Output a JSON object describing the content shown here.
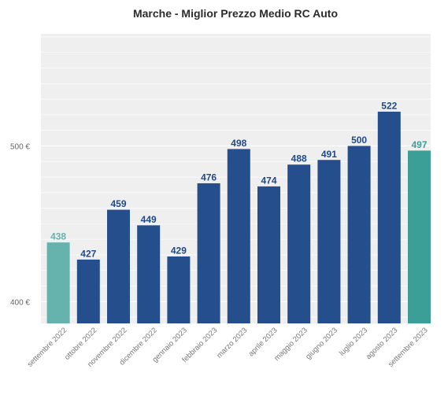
{
  "chart_data": {
    "type": "bar",
    "title": "Marche - Miglior Prezzo Medio RC Auto",
    "xlabel": "",
    "ylabel": "",
    "categories": [
      "settembre 2022",
      "ottobre 2022",
      "novembre 2022",
      "dicembre 2022",
      "gennaio 2023",
      "febbraio 2023",
      "marzo 2023",
      "aprile 2023",
      "maggio 2023",
      "giugno 2023",
      "luglio 2023",
      "agosto 2023",
      "settembre 2023"
    ],
    "values": [
      438,
      427,
      459,
      449,
      429,
      476,
      498,
      474,
      488,
      491,
      500,
      522,
      497
    ],
    "data_labels": [
      "438",
      "427",
      "459",
      "449",
      "429",
      "476",
      "498",
      "474",
      "488",
      "491",
      "500",
      "522",
      "497"
    ],
    "yticks": [
      400,
      500
    ],
    "ytick_labels": [
      "400 €",
      "500 €"
    ],
    "ylim": [
      386,
      572
    ],
    "grid": true,
    "colors": [
      "#66b3ae",
      "#254e8c",
      "#254e8c",
      "#254e8c",
      "#254e8c",
      "#254e8c",
      "#254e8c",
      "#254e8c",
      "#254e8c",
      "#254e8c",
      "#254e8c",
      "#254e8c",
      "#3b9e97"
    ],
    "label_colors": [
      "#66b3ae",
      "#1f4a8a",
      "#1f4a8a",
      "#1f4a8a",
      "#1f4a8a",
      "#1f4a8a",
      "#1f4a8a",
      "#1f4a8a",
      "#1f4a8a",
      "#1f4a8a",
      "#1f4a8a",
      "#1f4a8a",
      "#3b9e97"
    ],
    "plot_background": "#efefef"
  }
}
